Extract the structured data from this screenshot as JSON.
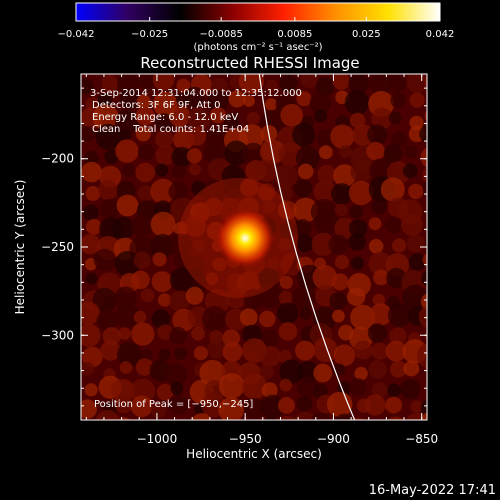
{
  "chart_data": {
    "type": "heatmap",
    "title": "Reconstructed RHESSI Image",
    "xlabel": "Heliocentric X (arcsec)",
    "ylabel": "Heliocentric Y (arcsec)",
    "xlim": [
      -1043,
      -847
    ],
    "ylim": [
      -348,
      -152
    ],
    "x_ticks": [
      -1000,
      -950,
      -900,
      -850
    ],
    "x_tick_labels": [
      "−1000",
      "−950",
      "−900",
      "−850"
    ],
    "y_ticks": [
      -200,
      -250,
      -300
    ],
    "y_tick_labels": [
      "−200",
      "−250",
      "−300"
    ],
    "colorbar": {
      "range": [
        -0.042,
        0.042
      ],
      "ticks": [
        -0.042,
        -0.025,
        -0.0085,
        0.0085,
        0.025,
        0.042
      ],
      "tick_labels": [
        "−0.042",
        "−0.025",
        "−0.0085",
        "0.0085",
        "0.025",
        "0.042"
      ],
      "units": "(photons cm⁻² s⁻¹ asec⁻²)",
      "colors": [
        "#0000ff",
        "#300060",
        "#000000",
        "#8a0000",
        "#ff2000",
        "#ff9000",
        "#ffe000",
        "#ffffff"
      ]
    },
    "peak": {
      "x": -950,
      "y": -245
    },
    "annotations": [
      " 3-Sep-2014 12:31:04.000 to 12:35:12.000",
      "Detectors: 3F 6F 9F, Att 0",
      "Energy Range: 6.0 - 12.0 keV",
      "Clean    Total counts: 1.41E+04"
    ],
    "peak_label": "Position of Peak = [−950,−245]",
    "limb_curve": [
      [
        -942,
        -152
      ],
      [
        -922,
        -250
      ],
      [
        -888,
        -348
      ]
    ],
    "grid": false
  },
  "footer_timestamp": "16-May-2022 17:41"
}
